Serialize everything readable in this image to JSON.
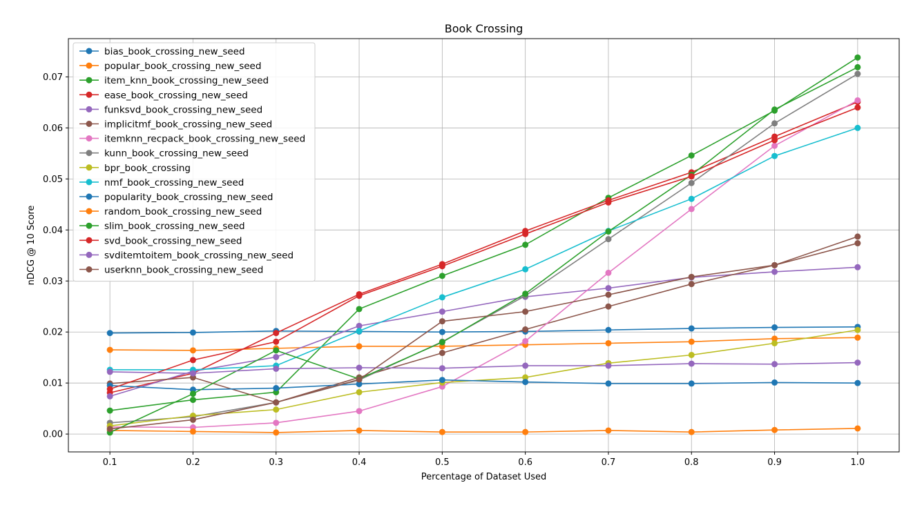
{
  "chart_data": {
    "type": "line",
    "title": "Book Crossing",
    "xlabel": "Percentage of Dataset Used",
    "ylabel": "nDCG @ 10 Score",
    "x": [
      0.1,
      0.2,
      0.3,
      0.4,
      0.5,
      0.6,
      0.7,
      0.8,
      0.9,
      1.0
    ],
    "x_tick_labels": [
      "0.1",
      "0.2",
      "0.3",
      "0.4",
      "0.5",
      "0.6",
      "0.7",
      "0.8",
      "0.9",
      "1.0"
    ],
    "y_ticks": [
      0.0,
      0.01,
      0.02,
      0.03,
      0.04,
      0.05,
      0.06,
      0.07
    ],
    "y_tick_labels": [
      "0.00",
      "0.01",
      "0.02",
      "0.03",
      "0.04",
      "0.05",
      "0.06",
      "0.07"
    ],
    "xlim": [
      0.05,
      1.05
    ],
    "ylim": [
      -0.0035,
      0.0775
    ],
    "grid": true,
    "legend_position": "top-left",
    "series": [
      {
        "name": "bias_book_crossing_new_seed",
        "color": "#1f77b4",
        "values": [
          0.0198,
          0.0199,
          0.0202,
          0.0201,
          0.02,
          0.0201,
          0.0204,
          0.0207,
          0.0209,
          0.021
        ]
      },
      {
        "name": "popular_book_crossing_new_seed",
        "color": "#ff7f0e",
        "values": [
          0.0165,
          0.0164,
          0.0168,
          0.0172,
          0.0172,
          0.0175,
          0.0178,
          0.0181,
          0.0187,
          0.0189
        ]
      },
      {
        "name": "item_knn_book_crossing_new_seed",
        "color": "#2ca02c",
        "values": [
          0.0046,
          0.0067,
          0.0082,
          0.0245,
          0.031,
          0.0371,
          0.0463,
          0.0546,
          0.0634,
          0.0738
        ]
      },
      {
        "name": "ease_book_crossing_new_seed",
        "color": "#d62728",
        "values": [
          0.0081,
          0.0119,
          0.0198,
          0.0274,
          0.0333,
          0.0398,
          0.0458,
          0.0513,
          0.0583,
          0.0651
        ]
      },
      {
        "name": "funksvd_book_crossing_new_seed",
        "color": "#9467bd",
        "values": [
          0.0074,
          0.0123,
          0.0151,
          0.0212,
          0.024,
          0.0269,
          0.0286,
          0.0307,
          0.0318,
          0.0327
        ]
      },
      {
        "name": "implicitmf_book_crossing_new_seed",
        "color": "#8c564b",
        "values": [
          0.0099,
          0.0111,
          0.0062,
          0.0111,
          0.0159,
          0.0205,
          0.025,
          0.0294,
          0.0331,
          0.0374
        ]
      },
      {
        "name": "itemknn_recpack_book_crossing_new_seed",
        "color": "#e377c2",
        "values": [
          0.0014,
          0.0013,
          0.0022,
          0.0045,
          0.0093,
          0.0182,
          0.0316,
          0.0441,
          0.0565,
          0.0654
        ]
      },
      {
        "name": "kunn_book_crossing_new_seed",
        "color": "#7f7f7f",
        "values": [
          0.0022,
          0.0034,
          0.0062,
          0.0106,
          0.0181,
          0.0271,
          0.0382,
          0.0492,
          0.0609,
          0.0706
        ]
      },
      {
        "name": "bpr_book_crossing",
        "color": "#bcbd22",
        "values": [
          0.0016,
          0.0036,
          0.0048,
          0.0082,
          0.0101,
          0.0111,
          0.0139,
          0.0155,
          0.0178,
          0.0204
        ]
      },
      {
        "name": "nmf_book_crossing_new_seed",
        "color": "#17becf",
        "values": [
          0.0126,
          0.0126,
          0.0134,
          0.0202,
          0.0268,
          0.0323,
          0.0398,
          0.0461,
          0.0545,
          0.06
        ]
      },
      {
        "name": "popularity_book_crossing_new_seed",
        "color": "#1f77b4",
        "values": [
          0.0095,
          0.0087,
          0.009,
          0.0098,
          0.0106,
          0.0102,
          0.0099,
          0.0099,
          0.0101,
          0.01
        ]
      },
      {
        "name": "random_book_crossing_new_seed",
        "color": "#ff7f0e",
        "values": [
          0.0007,
          0.0005,
          0.0003,
          0.0007,
          0.0004,
          0.0004,
          0.0007,
          0.0004,
          0.0008,
          0.0011
        ]
      },
      {
        "name": "slim_book_crossing_new_seed",
        "color": "#2ca02c",
        "values": [
          0.0003,
          0.0079,
          0.0164,
          0.0108,
          0.018,
          0.0275,
          0.0397,
          0.0508,
          0.0636,
          0.0719
        ]
      },
      {
        "name": "svd_book_crossing_new_seed",
        "color": "#d62728",
        "values": [
          0.0088,
          0.0145,
          0.0181,
          0.0271,
          0.0329,
          0.0392,
          0.0454,
          0.0505,
          0.0576,
          0.064
        ]
      },
      {
        "name": "svditemtoitem_book_crossing_new_seed",
        "color": "#9467bd",
        "values": [
          0.0122,
          0.0119,
          0.0128,
          0.013,
          0.0129,
          0.0134,
          0.0134,
          0.0138,
          0.0137,
          0.014
        ]
      },
      {
        "name": "userknn_book_crossing_new_seed",
        "color": "#8c564b",
        "values": [
          0.001,
          0.0028,
          0.0062,
          0.0107,
          0.0221,
          0.024,
          0.0273,
          0.0308,
          0.0331,
          0.0387
        ]
      }
    ]
  }
}
